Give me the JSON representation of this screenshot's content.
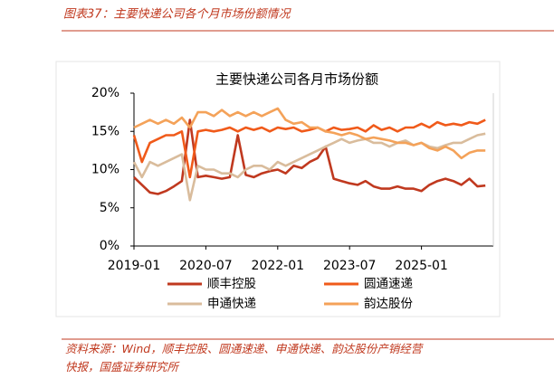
{
  "header": "图表37：主要快递公司各个月市场份额情况",
  "source": "资料来源：Wind，顺丰控股、圆通速递、申通快递、韵达股份产销经营快报，国盛证券研究所",
  "chart_data": {
    "type": "line",
    "title": "主要快递公司各月市场份额",
    "x": [
      "2019-01",
      "2019-03",
      "2019-05",
      "2019-07",
      "2019-09",
      "2019-11",
      "2020-01",
      "2020-03",
      "2020-05",
      "2020-07",
      "2020-09",
      "2020-11",
      "2021-01",
      "2021-03",
      "2021-05",
      "2021-07",
      "2021-09",
      "2021-11",
      "2022-01",
      "2022-03",
      "2022-05",
      "2022-07",
      "2022-09",
      "2022-11",
      "2023-01",
      "2023-03",
      "2023-05",
      "2023-07",
      "2023-09",
      "2023-11",
      "2024-01",
      "2024-03",
      "2024-05",
      "2024-07",
      "2024-09",
      "2024-11",
      "2025-01",
      "2025-03",
      "2025-05",
      "2025-07",
      "2025-09",
      "2025-11",
      "2026-01",
      "2026-03",
      "2026-05"
    ],
    "xlim": [
      "2019-01",
      "2026-07"
    ],
    "xticks": [
      "2019-01",
      "2020-07",
      "2022-01",
      "2023-07",
      "2025-01"
    ],
    "ylim": [
      0,
      20
    ],
    "yticks": [
      {
        "value": 0,
        "label": "0%"
      },
      {
        "value": 5,
        "label": "5%"
      },
      {
        "value": 10,
        "label": "10%"
      },
      {
        "value": 15,
        "label": "15%"
      },
      {
        "value": 20,
        "label": "20%"
      }
    ],
    "series": [
      {
        "name": "顺丰控股",
        "color": "#c0391f",
        "values": [
          9.0,
          8.0,
          7.0,
          6.8,
          7.2,
          7.8,
          8.5,
          16.5,
          9.0,
          9.2,
          9.0,
          8.8,
          9.0,
          14.5,
          9.3,
          9.0,
          9.5,
          9.8,
          10.0,
          9.5,
          10.5,
          10.2,
          11.0,
          11.5,
          13.0,
          8.8,
          8.5,
          8.2,
          8.0,
          8.5,
          7.8,
          7.5,
          7.5,
          7.8,
          7.5,
          7.5,
          7.2,
          8.0,
          8.5,
          8.8,
          8.5,
          8.0,
          8.8,
          7.8,
          7.9
        ]
      },
      {
        "name": "圆通速递",
        "color": "#f05a1a",
        "values": [
          14.5,
          11.0,
          13.5,
          14.0,
          14.5,
          14.5,
          15.0,
          9.0,
          15.0,
          15.2,
          15.0,
          15.2,
          15.5,
          15.0,
          15.5,
          15.2,
          15.5,
          15.0,
          15.5,
          15.3,
          15.5,
          15.0,
          15.2,
          15.5,
          15.0,
          15.5,
          15.2,
          15.3,
          15.5,
          15.0,
          15.8,
          15.2,
          15.5,
          15.0,
          15.5,
          15.5,
          16.0,
          15.5,
          16.2,
          15.8,
          16.0,
          15.8,
          16.2,
          16.0,
          16.5
        ]
      },
      {
        "name": "申通快递",
        "color": "#d9bc9c",
        "values": [
          11.0,
          9.0,
          11.0,
          10.5,
          11.0,
          11.5,
          12.0,
          6.0,
          10.5,
          10.0,
          10.0,
          9.5,
          9.5,
          9.0,
          10.0,
          10.5,
          10.5,
          10.0,
          11.0,
          10.5,
          11.0,
          11.5,
          12.0,
          12.5,
          13.0,
          13.5,
          14.0,
          13.5,
          13.8,
          14.0,
          13.5,
          13.5,
          13.0,
          13.5,
          13.8,
          13.2,
          13.5,
          13.0,
          12.8,
          13.2,
          13.5,
          13.5,
          14.0,
          14.5,
          14.7
        ]
      },
      {
        "name": "韵达股份",
        "color": "#f4a259",
        "values": [
          15.5,
          16.0,
          16.5,
          16.0,
          16.5,
          16.0,
          16.8,
          15.5,
          17.5,
          17.5,
          17.0,
          17.8,
          17.0,
          17.5,
          17.0,
          17.5,
          17.0,
          17.5,
          18.0,
          16.5,
          16.0,
          16.2,
          15.5,
          15.5,
          15.0,
          14.8,
          14.5,
          14.8,
          14.5,
          14.0,
          14.2,
          14.0,
          13.8,
          13.5,
          13.5,
          13.2,
          13.5,
          12.8,
          12.5,
          13.0,
          12.5,
          11.5,
          12.2,
          12.5,
          12.5
        ]
      }
    ]
  }
}
